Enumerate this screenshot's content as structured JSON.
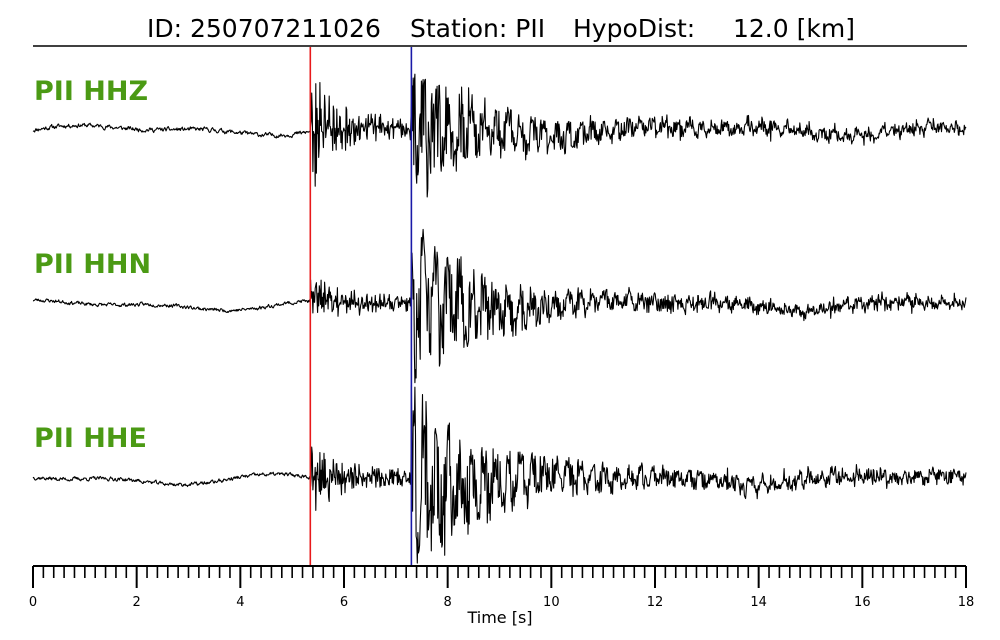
{
  "header": {
    "id_text": "ID: 250707211026",
    "station_text": "Station: PII",
    "hypodist_text": "HypoDist:",
    "hypodist_value": "12.0 [km]"
  },
  "chart_data": {
    "type": "line",
    "title": "ID: 250707211026   Station: PII   HypoDist:    12.0 [km]",
    "xlabel": "Time [s]",
    "ylabel": "",
    "xlim": [
      0,
      18
    ],
    "x_ticks": [
      0,
      2,
      4,
      6,
      8,
      10,
      12,
      14,
      16,
      18
    ],
    "x_minor_step": 0.2,
    "grid": false,
    "p_pick_time": 5.35,
    "s_pick_time": 7.3,
    "p_pick_color": "#e8191b",
    "s_pick_color": "#1a1aa8",
    "label_color": "#4b9a14",
    "trace_color": "#000000",
    "series": [
      {
        "name": "PII HHZ",
        "noise_level": 0.05,
        "p_amp": 1.0,
        "s_amp": 0.95,
        "coda_amp": 0.18,
        "seed": 11
      },
      {
        "name": "PII HHN",
        "noise_level": 0.04,
        "p_amp": 0.35,
        "s_amp": 1.1,
        "coda_amp": 0.15,
        "seed": 23
      },
      {
        "name": "PII HHE",
        "noise_level": 0.04,
        "p_amp": 0.6,
        "s_amp": 1.1,
        "coda_amp": 0.2,
        "seed": 37
      }
    ]
  }
}
